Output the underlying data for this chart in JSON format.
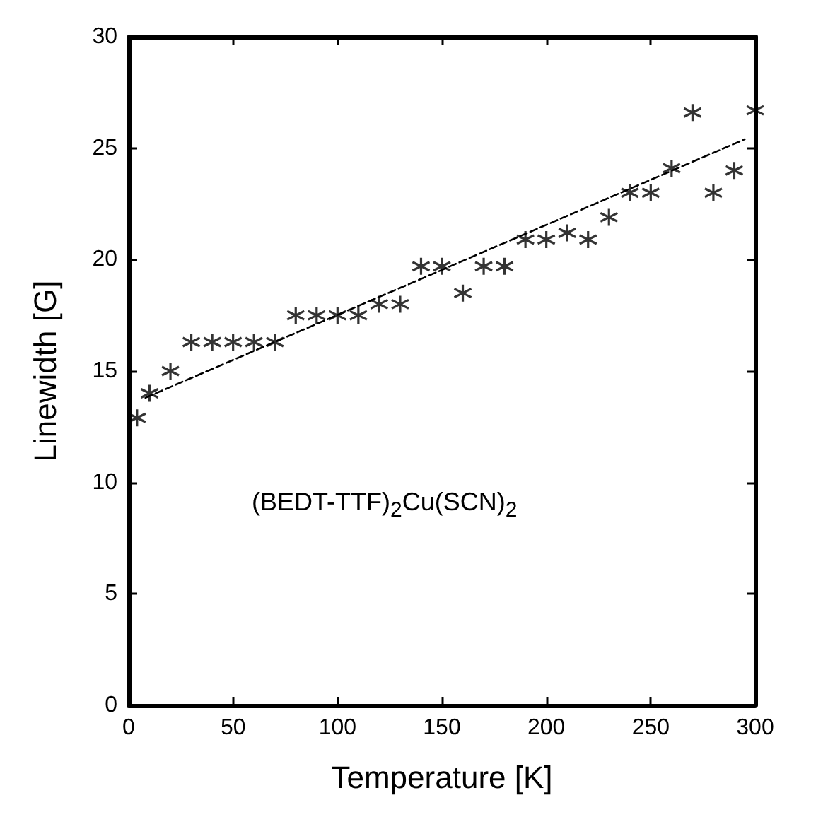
{
  "chart_data": {
    "type": "scatter",
    "xlabel": "Temperature [K]",
    "ylabel": "Linewidth [G]",
    "annotations": [
      "(BEDT-TTF)$_{2}$Cu(SCN)$_{2}$"
    ],
    "xlim": [
      0,
      300
    ],
    "xticks": [
      0,
      50,
      100,
      150,
      200,
      250,
      300
    ],
    "ylim": [
      0,
      30
    ],
    "yticks": [
      0,
      5,
      10,
      15,
      20,
      25,
      30
    ],
    "grid": false,
    "marker": "cross",
    "series": [
      {
        "color": "#000000",
        "x": [
          4,
          10,
          20,
          30,
          40,
          50,
          60,
          70,
          80,
          90,
          100,
          110,
          120,
          130,
          140,
          150,
          160,
          170,
          180,
          190,
          200,
          210,
          220,
          230,
          240,
          250,
          260,
          270,
          280,
          290,
          300
        ],
        "values": [
          12.9,
          14.0,
          15.0,
          16.3,
          16.3,
          16.3,
          16.3,
          16.3,
          17.5,
          17.5,
          17.5,
          17.5,
          18.0,
          18.0,
          19.7,
          19.7,
          18.5,
          19.7,
          19.7,
          20.9,
          20.9,
          21.2,
          20.9,
          21.9,
          23.0,
          23.0,
          24.1,
          26.6,
          23.0,
          24.0,
          26.7
        ]
      },
      {
        "type": "line",
        "color": "#000000",
        "line_style": "dashed",
        "marker": "none",
        "x": [
          8,
          295
        ],
        "values": [
          13.8,
          25.4
        ]
      }
    ]
  }
}
